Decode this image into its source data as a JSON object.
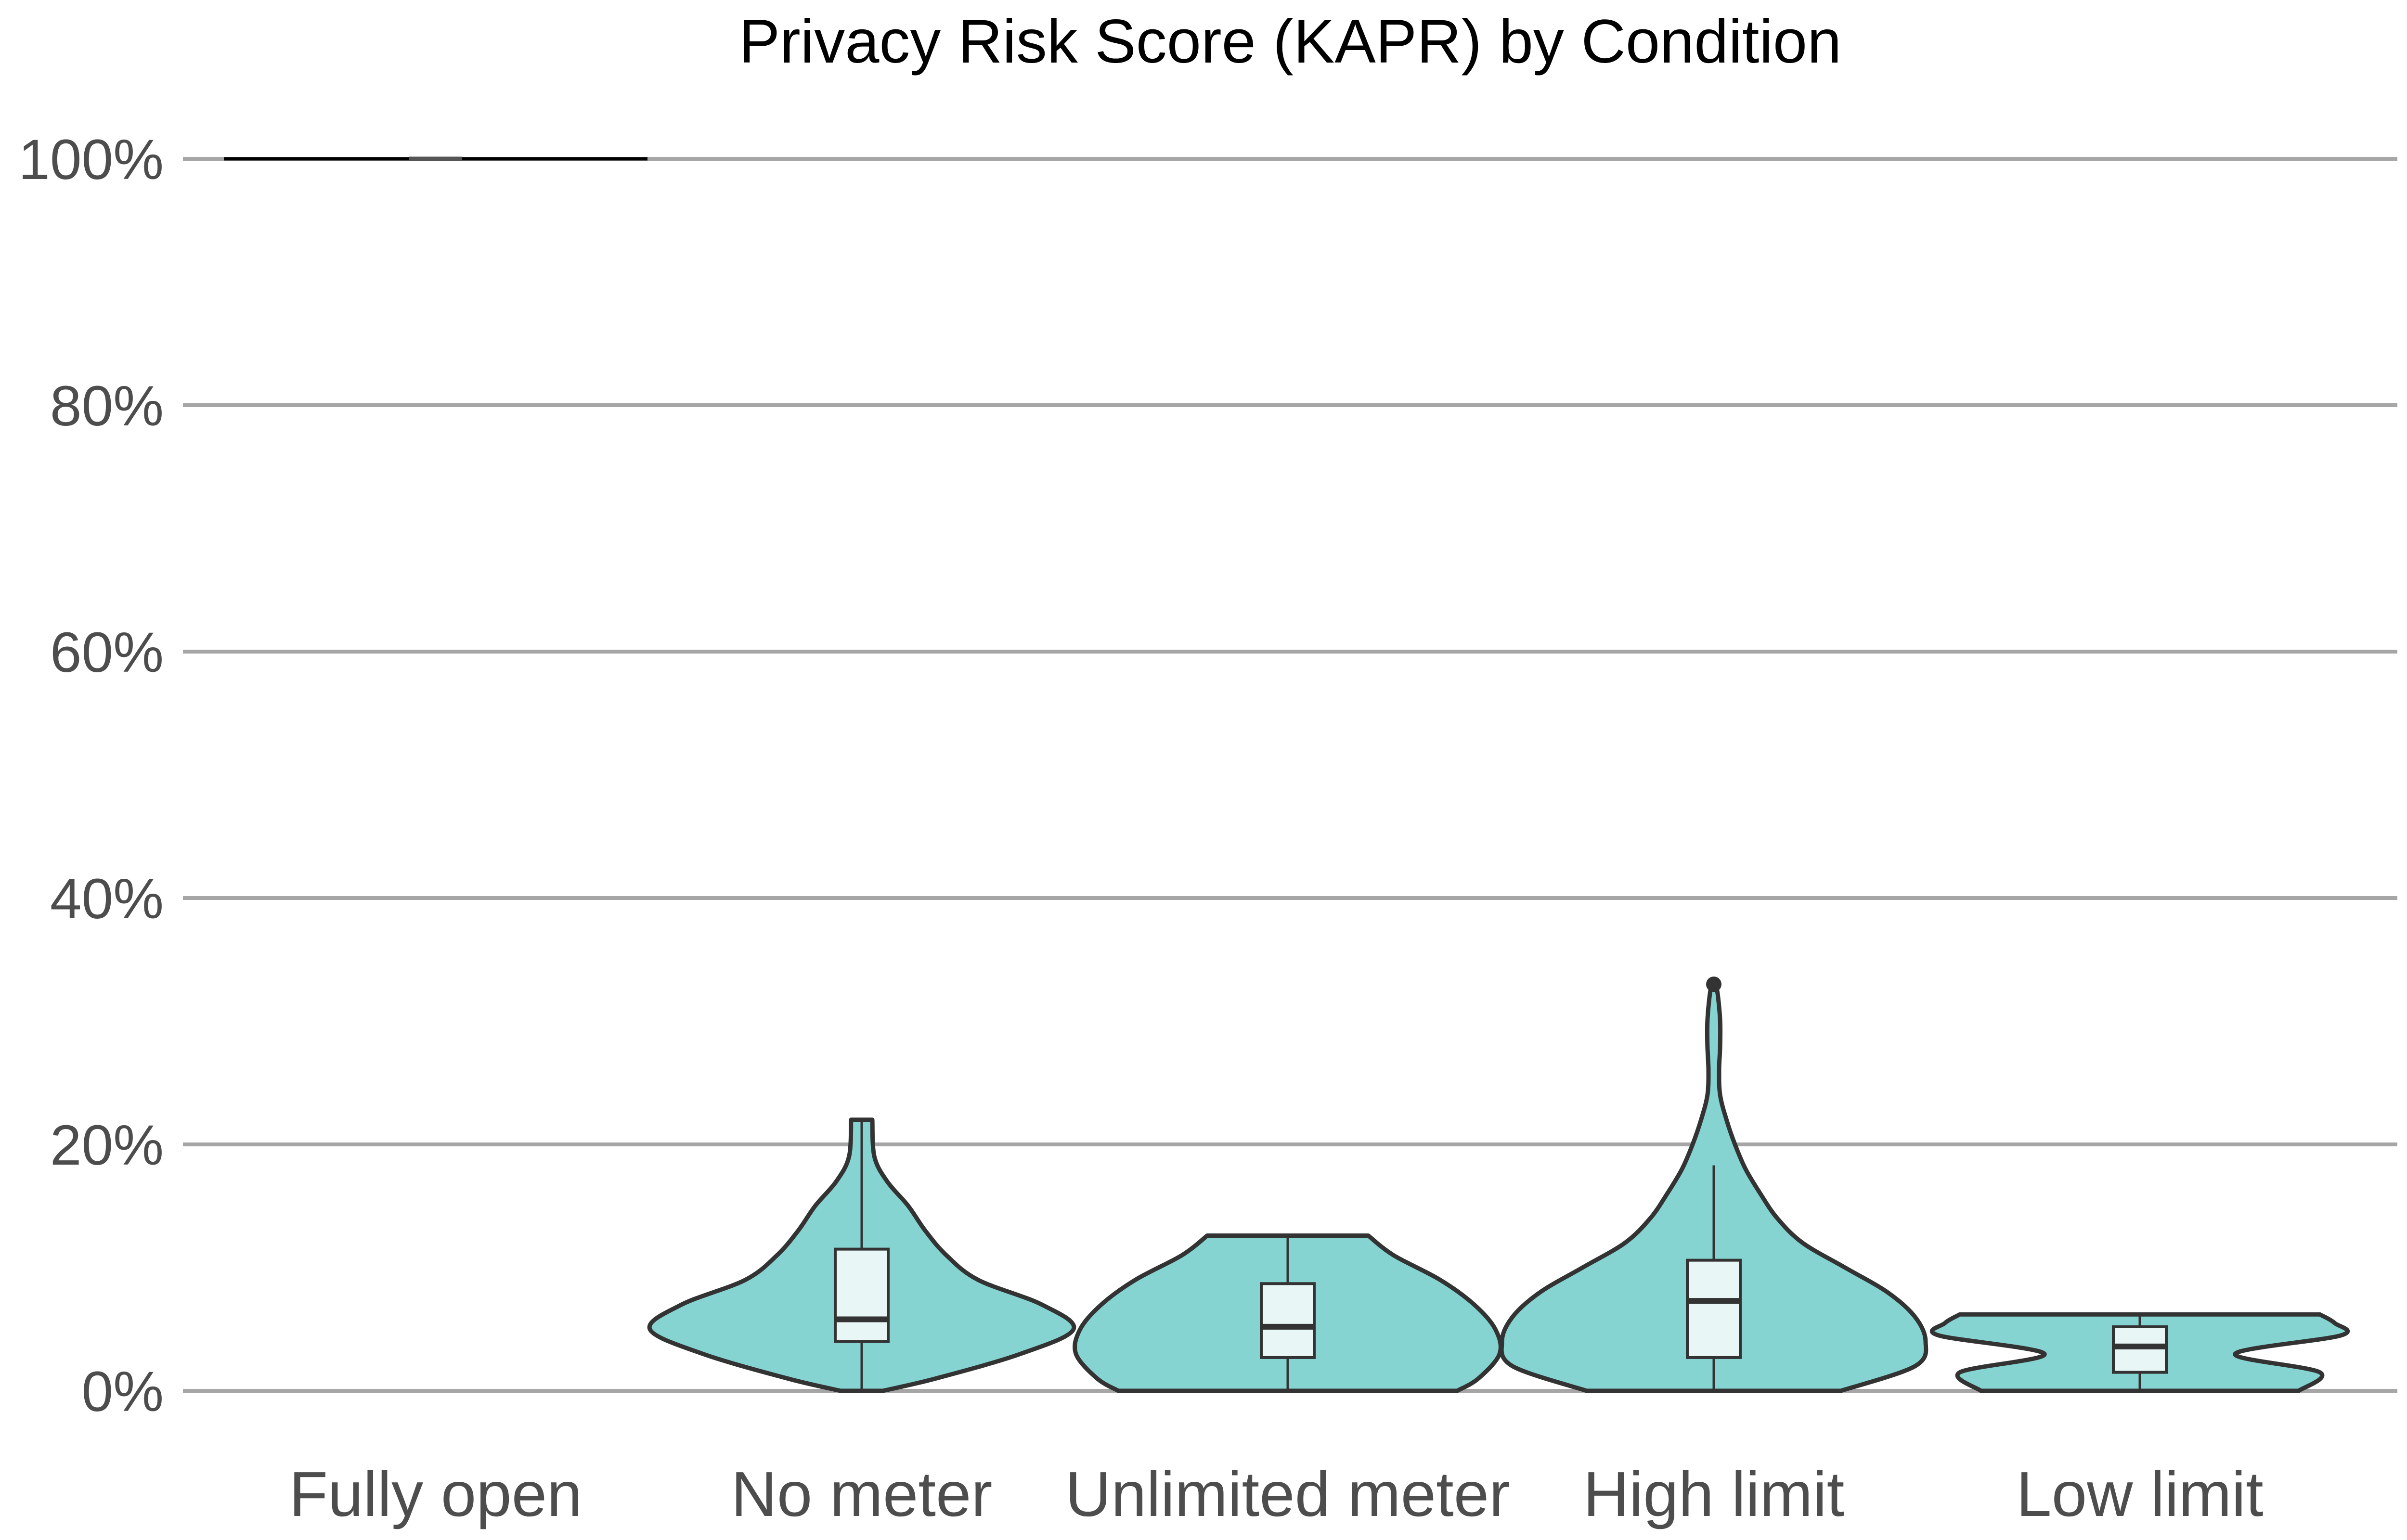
{
  "chart_data": {
    "type": "violin",
    "title": "Privacy Risk Score (KAPR) by Condition",
    "xlabel": "",
    "ylabel": "",
    "ylim": [
      0,
      100
    ],
    "y_unit": "%",
    "y_ticks": [
      "0%",
      "20%",
      "40%",
      "60%",
      "80%",
      "100%"
    ],
    "y_tick_values": [
      0,
      20,
      40,
      60,
      80,
      100
    ],
    "grid": "horizontal",
    "fill_color": "#86d4d2",
    "box_fill": "#e8f6f6",
    "outline_color": "#333333",
    "categories": [
      "Fully open",
      "No meter",
      "Unlimited meter",
      "High limit",
      "Low limit"
    ],
    "distributions": [
      {
        "category": "Fully open",
        "min": 100,
        "q1": 100,
        "median": 100,
        "q3": 100,
        "max": 100,
        "outliers": [],
        "density": [
          [
            100,
            1.0
          ]
        ]
      },
      {
        "category": "No meter",
        "min": 0,
        "q1": 4.0,
        "median": 5.8,
        "q3": 11.5,
        "max": 22,
        "outliers": [],
        "density": [
          [
            0,
            0.1
          ],
          [
            1,
            0.35
          ],
          [
            3,
            0.75
          ],
          [
            5,
            1.0
          ],
          [
            7,
            0.85
          ],
          [
            9,
            0.55
          ],
          [
            11,
            0.4
          ],
          [
            13,
            0.3
          ],
          [
            15,
            0.22
          ],
          [
            17,
            0.12
          ],
          [
            19,
            0.06
          ],
          [
            22,
            0.05
          ]
        ]
      },
      {
        "category": "Unlimited meter",
        "min": 0,
        "q1": 2.7,
        "median": 5.2,
        "q3": 8.7,
        "max": 12.6,
        "outliers": [],
        "density": [
          [
            0,
            0.8
          ],
          [
            1,
            0.9
          ],
          [
            3,
            1.0
          ],
          [
            5,
            0.98
          ],
          [
            7,
            0.88
          ],
          [
            9,
            0.72
          ],
          [
            11,
            0.5
          ],
          [
            12.6,
            0.38
          ]
        ]
      },
      {
        "category": "High limit",
        "min": 0,
        "q1": 2.7,
        "median": 7.3,
        "q3": 10.6,
        "max": 18.3,
        "outliers": [
          33
        ],
        "density": [
          [
            0,
            0.6
          ],
          [
            2,
            0.95
          ],
          [
            4,
            1.0
          ],
          [
            6,
            0.95
          ],
          [
            8,
            0.82
          ],
          [
            10,
            0.62
          ],
          [
            12,
            0.42
          ],
          [
            14,
            0.3
          ],
          [
            16,
            0.22
          ],
          [
            18,
            0.15
          ],
          [
            20,
            0.1
          ],
          [
            22,
            0.06
          ],
          [
            24,
            0.03
          ],
          [
            26,
            0.025
          ],
          [
            28,
            0.03
          ],
          [
            30,
            0.03
          ],
          [
            32,
            0.02
          ],
          [
            33,
            0.01
          ]
        ]
      },
      {
        "category": "Low limit",
        "min": 0,
        "q1": 1.5,
        "median": 3.6,
        "q3": 5.2,
        "max": 6.2,
        "outliers": [],
        "density": [
          [
            0,
            0.75
          ],
          [
            1.5,
            0.85
          ],
          [
            3,
            0.45
          ],
          [
            4.5,
            0.95
          ],
          [
            5.5,
            0.92
          ],
          [
            6.2,
            0.85
          ]
        ]
      }
    ]
  }
}
